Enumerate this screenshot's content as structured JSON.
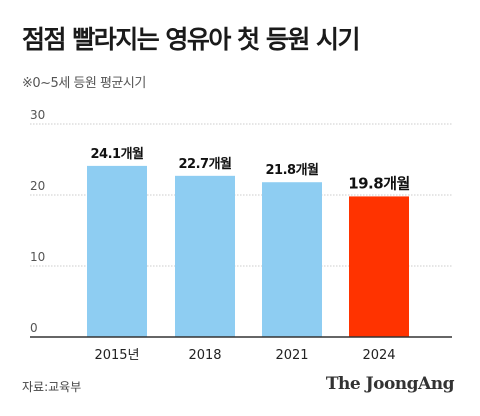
{
  "header": {
    "title": "점점 빨라지는 영유아 첫 등원 시기",
    "subtitle": "※0~5세 등원 평균시기"
  },
  "footer": {
    "source": "자료:교육부",
    "brand": "The JoongAng"
  },
  "colors": {
    "normal_bar": "#8ecdf2",
    "highlight_bar": "#ff3300",
    "grid": "#cccccc",
    "axis": "#333333"
  },
  "chart_data": {
    "type": "bar",
    "categories": [
      "2015년",
      "2018",
      "2021",
      "2024"
    ],
    "values": [
      24.1,
      22.7,
      21.8,
      19.8
    ],
    "data_labels": [
      "24.1개월",
      "22.7개월",
      "21.8개월",
      "19.8개월"
    ],
    "highlight_index": 3,
    "ylim": [
      0,
      30
    ],
    "yticks": [
      "0",
      "10",
      "20",
      "30"
    ],
    "grid": true
  }
}
